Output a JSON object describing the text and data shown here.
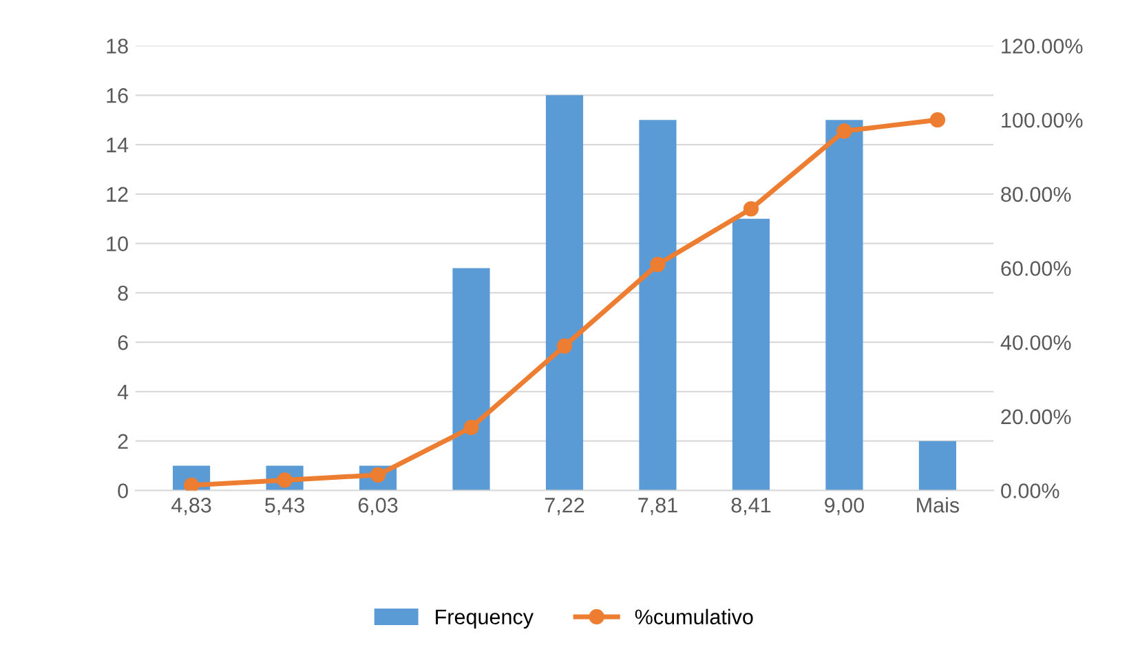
{
  "chart_data": {
    "type": "bar",
    "categories": [
      "4,83",
      "5,43",
      "6,03",
      null,
      "7,22",
      "7,81",
      "8,41",
      "9,00",
      "Mais"
    ],
    "series": [
      {
        "name": "Frequency",
        "color": "#5b9bd5",
        "values": [
          1,
          1,
          1,
          9,
          16,
          15,
          11,
          15,
          2
        ]
      },
      {
        "name": "%cumulativo",
        "type": "line",
        "axis": "y2",
        "color": "#ed7d31",
        "marker": "circle",
        "values": [
          1.4,
          2.8,
          4.2,
          17,
          39,
          61,
          76,
          97,
          100
        ]
      }
    ],
    "ylim": [
      0,
      18
    ],
    "yticks": [
      0,
      2,
      4,
      6,
      8,
      10,
      12,
      14,
      16,
      18
    ],
    "y2lim": [
      0,
      120
    ],
    "y2ticks": [
      {
        "value": 0,
        "label": "0.00%"
      },
      {
        "value": 20,
        "label": "20.00%"
      },
      {
        "value": 40,
        "label": "40.00%"
      },
      {
        "value": 60,
        "label": "60.00%"
      },
      {
        "value": 80,
        "label": "80.00%"
      },
      {
        "value": 100,
        "label": "100.00%"
      },
      {
        "value": 120,
        "label": "120.00%"
      }
    ],
    "grid": "y",
    "legend": "bottom"
  }
}
